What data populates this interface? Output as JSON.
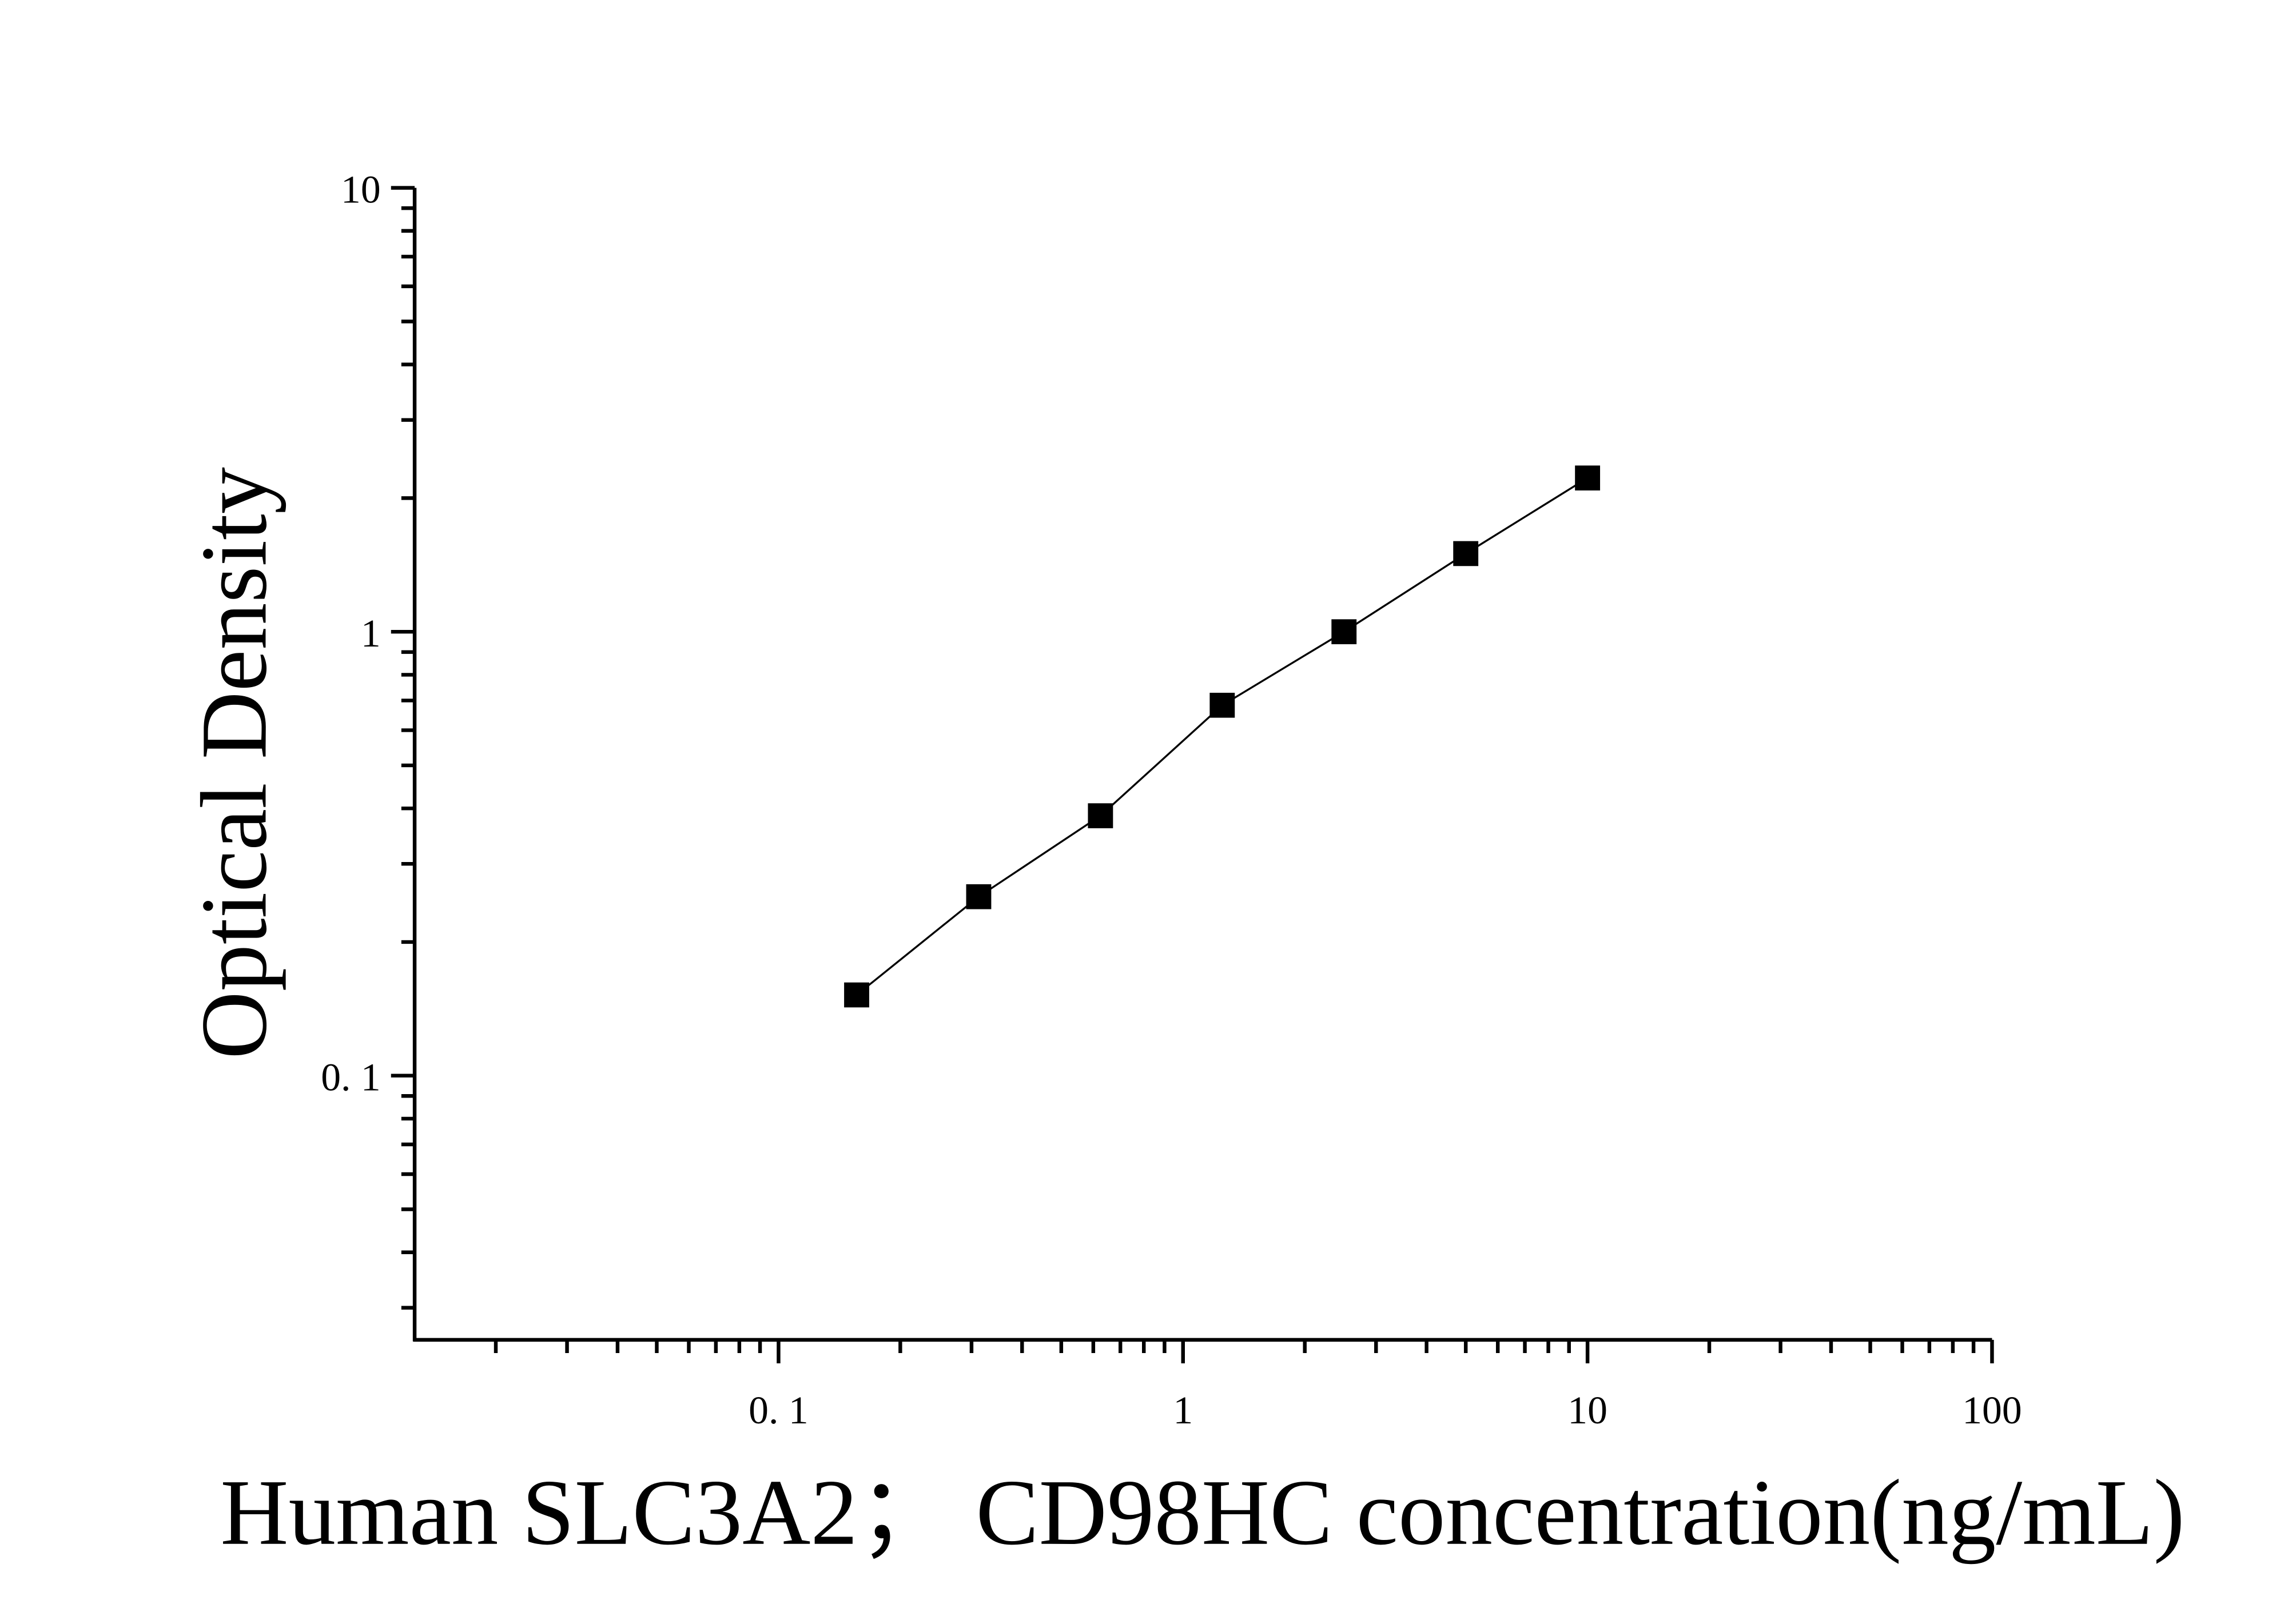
{
  "chart_data": {
    "type": "scatter",
    "x_label": "Human SLC3A2；  CD98HC concentration(ng/mL)",
    "y_label": "Optical Density",
    "x_log": true,
    "y_log": true,
    "xlim": [
      0.0126,
      100
    ],
    "ylim": [
      0.0254,
      10
    ],
    "xticks": [
      {
        "value": 0.1,
        "label": "0. 1"
      },
      1,
      10,
      100
    ],
    "yticks": [
      {
        "value": 0.1,
        "label": "0. 1"
      },
      1,
      10
    ],
    "xminorticks": [
      0.02,
      0.03,
      0.04,
      0.05,
      0.06,
      0.07,
      0.08,
      0.09,
      0.2,
      0.3,
      0.4,
      0.5,
      0.6,
      0.7,
      0.8,
      0.9,
      2,
      3,
      4,
      5,
      6,
      7,
      8,
      9,
      20,
      30,
      40,
      50,
      60,
      70,
      80,
      90
    ],
    "yminorticks": [
      0.03,
      0.04,
      0.05,
      0.06,
      0.07,
      0.08,
      0.09,
      0.2,
      0.3,
      0.4,
      0.5,
      0.6,
      0.7,
      0.8,
      0.9,
      2,
      3,
      4,
      5,
      6,
      7,
      8,
      9
    ],
    "series": [
      {
        "color": "#000000",
        "x": [
          0.156,
          0.3125,
          0.625,
          1.25,
          2.5,
          5,
          10
        ],
        "values": [
          0.152,
          0.253,
          0.385,
          0.683,
          1.0,
          1.5,
          2.22
        ]
      }
    ],
    "fit_line": true
  }
}
